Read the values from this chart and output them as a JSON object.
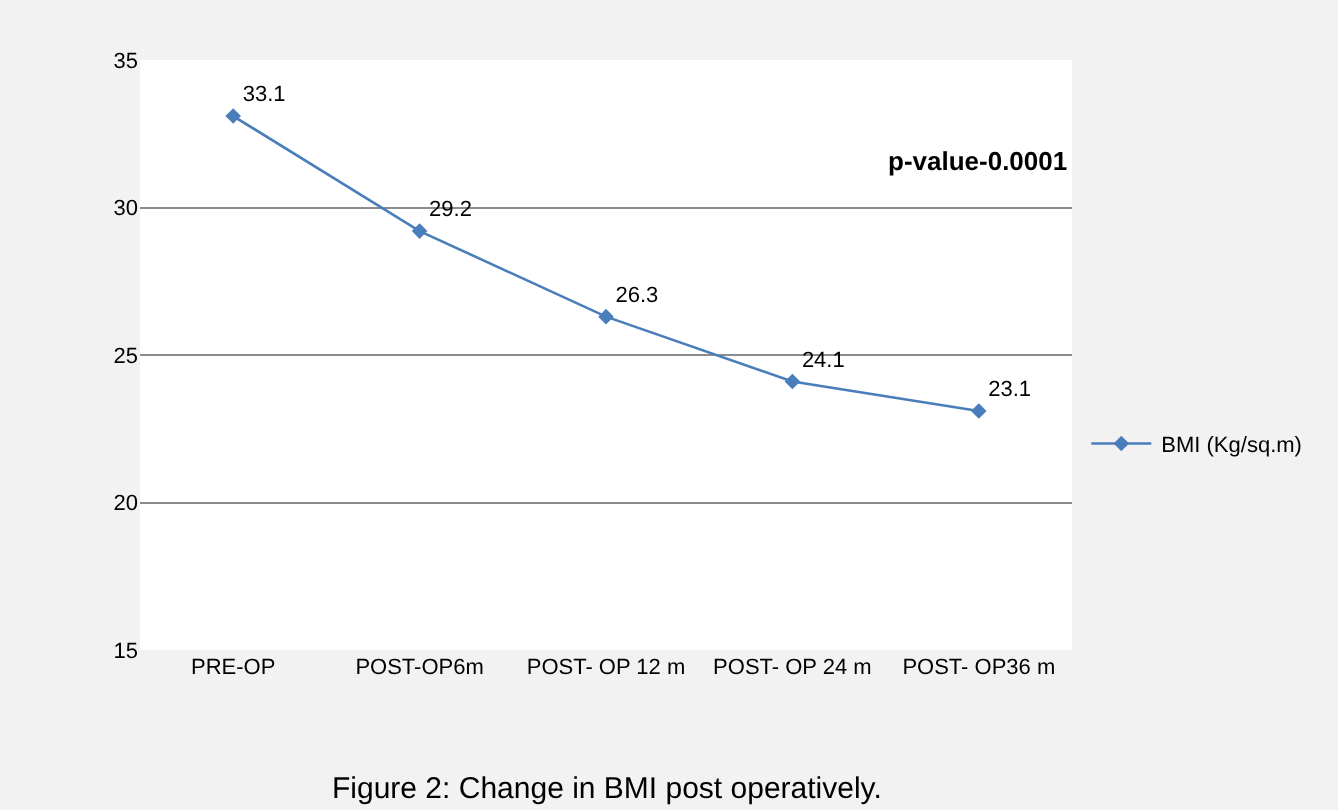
{
  "chart_data": {
    "type": "line",
    "categories": [
      "PRE-OP",
      "POST-OP6m",
      "POST- OP 12 m",
      "POST- OP 24 m",
      "POST- OP36 m"
    ],
    "series": [
      {
        "name": "BMI (Kg/sq.m)",
        "color": "#4a7ebb",
        "values": [
          33.1,
          29.2,
          26.3,
          24.1,
          23.1
        ]
      }
    ],
    "ylim": [
      15,
      35
    ],
    "yticks": [
      15,
      20,
      25,
      30,
      35
    ],
    "grid": "y",
    "legend": "right",
    "marker": "diamond",
    "line_style": "solid",
    "data_labels": true,
    "annotations": [
      "p-value-0.0001",
      "Figure 2: Change in BMI post operatively."
    ]
  }
}
